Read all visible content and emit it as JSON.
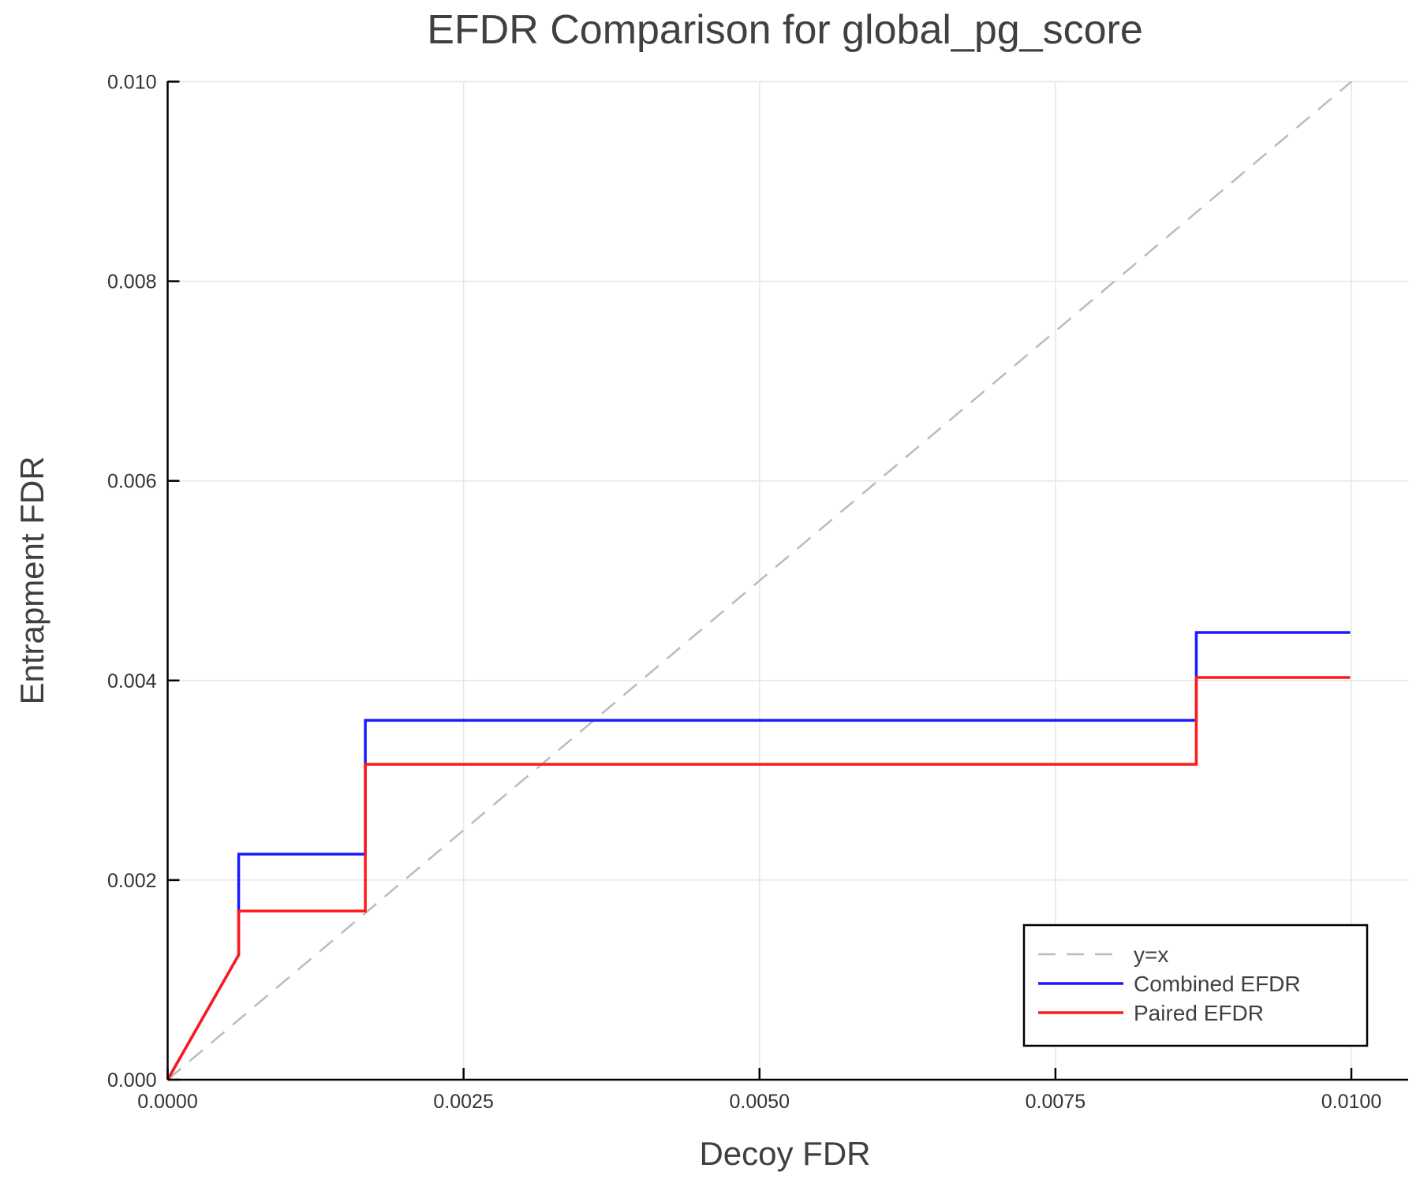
{
  "chart_data": {
    "type": "line",
    "title": "EFDR Comparison for global_pg_score",
    "xlabel": "Decoy FDR",
    "ylabel": "Entrapment FDR",
    "xlim": [
      0,
      0.0105
    ],
    "ylim": [
      0,
      0.01
    ],
    "xticks": [
      "0.0000",
      "0.0025",
      "0.0050",
      "0.0075",
      "0.0100"
    ],
    "xtick_values": [
      0,
      0.0025,
      0.005,
      0.0075,
      0.01
    ],
    "yticks": [
      "0.000",
      "0.002",
      "0.004",
      "0.006",
      "0.008",
      "0.010"
    ],
    "ytick_values": [
      0,
      0.002,
      0.004,
      0.006,
      0.008,
      0.01
    ],
    "grid": true,
    "legend_position": "bottom-right",
    "series": [
      {
        "name": "y=x",
        "color": "#bbbbbb",
        "dashed": true,
        "x": [
          0,
          0.01
        ],
        "y": [
          0,
          0.01
        ]
      },
      {
        "name": "Combined EFDR",
        "color": "#1a1aff",
        "dashed": false,
        "x": [
          0,
          0.0006,
          0.0006,
          0.00167,
          0.00167,
          0.00869,
          0.00869,
          0.00999
        ],
        "y": [
          0,
          0.00125,
          0.00226,
          0.00226,
          0.0036,
          0.0036,
          0.00448,
          0.00448
        ]
      },
      {
        "name": "Paired EFDR",
        "color": "#ff1a1a",
        "dashed": false,
        "x": [
          0,
          0.0006,
          0.0006,
          0.00167,
          0.00167,
          0.00869,
          0.00869,
          0.00999
        ],
        "y": [
          0,
          0.00125,
          0.00169,
          0.00169,
          0.00316,
          0.00316,
          0.00403,
          0.00403
        ]
      }
    ]
  }
}
